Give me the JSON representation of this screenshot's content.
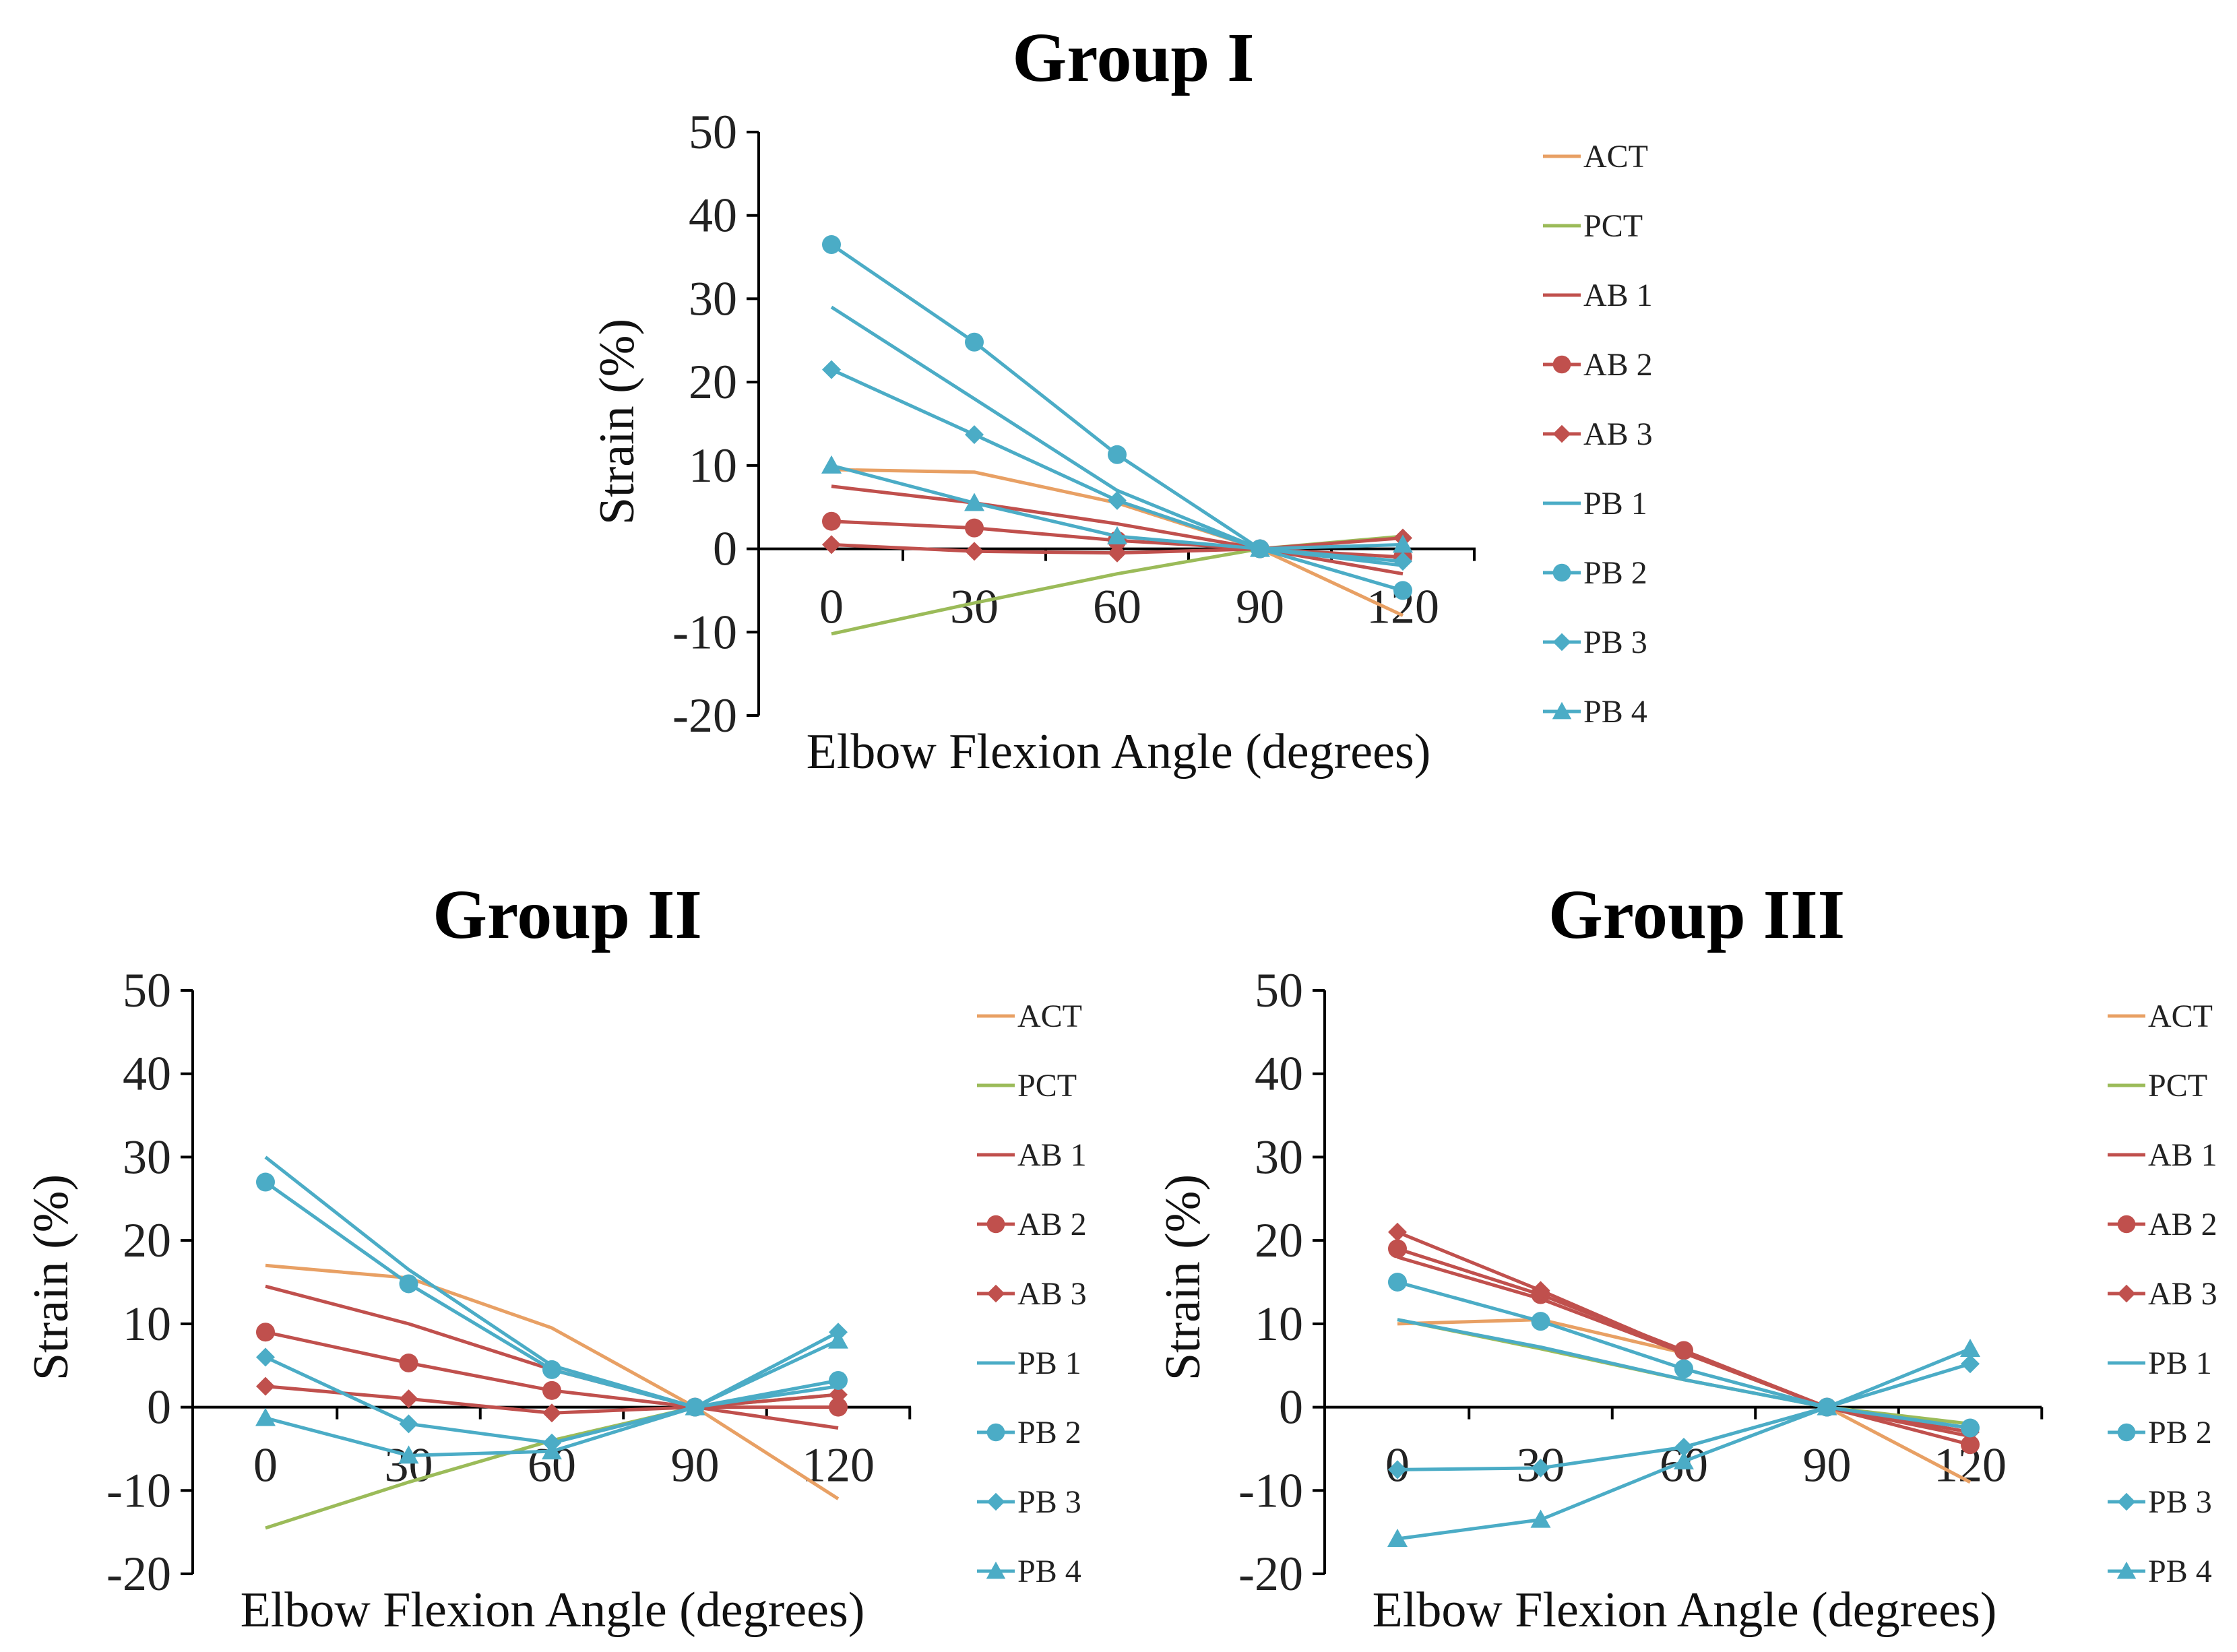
{
  "chart_data": [
    {
      "type": "line",
      "title": "Group I",
      "xlabel": "Elbow Flexion Angle (degrees)",
      "ylabel": "Strain (%)",
      "x": [
        0,
        30,
        60,
        90,
        120
      ],
      "ylim": [
        -20,
        50
      ],
      "yticks": [
        -20,
        -10,
        0,
        10,
        20,
        30,
        40,
        50
      ],
      "legend_position": "right",
      "series": [
        {
          "name": "ACT",
          "marker": "none",
          "color": "#E8A064",
          "values": [
            9.5,
            9.2,
            5.5,
            0,
            -8
          ]
        },
        {
          "name": "PCT",
          "marker": "none",
          "color": "#9BBB59",
          "values": [
            -10.2,
            -6.5,
            -3,
            0,
            1.5
          ]
        },
        {
          "name": "AB 1",
          "marker": "none",
          "color": "#C0504D",
          "values": [
            7.5,
            5.5,
            3,
            0,
            -3
          ]
        },
        {
          "name": "AB 2",
          "marker": "circle",
          "color": "#C0504D",
          "values": [
            3.3,
            2.5,
            1,
            0,
            -1
          ]
        },
        {
          "name": "AB 3",
          "marker": "diamond",
          "color": "#C0504D",
          "values": [
            0.5,
            -0.3,
            -0.5,
            0,
            1.3
          ]
        },
        {
          "name": "PB 1",
          "marker": "none",
          "color": "#4BACC6",
          "values": [
            29,
            18,
            7,
            0,
            -2
          ]
        },
        {
          "name": "PB 2",
          "marker": "circle",
          "color": "#4BACC6",
          "values": [
            36.5,
            24.8,
            11.3,
            0,
            -5
          ]
        },
        {
          "name": "PB 3",
          "marker": "diamond",
          "color": "#4BACC6",
          "values": [
            21.5,
            13.7,
            5.8,
            0,
            -1.5
          ]
        },
        {
          "name": "PB 4",
          "marker": "triangle",
          "color": "#4BACC6",
          "values": [
            10,
            5.5,
            1.5,
            0,
            0.5
          ]
        }
      ]
    },
    {
      "type": "line",
      "title": "Group II",
      "xlabel": "Elbow Flexion Angle (degrees)",
      "ylabel": "Strain (%)",
      "x": [
        0,
        30,
        60,
        90,
        120
      ],
      "ylim": [
        -20,
        50
      ],
      "yticks": [
        -20,
        -10,
        0,
        10,
        20,
        30,
        40,
        50
      ],
      "legend_position": "right",
      "series": [
        {
          "name": "ACT",
          "marker": "none",
          "color": "#E8A064",
          "values": [
            17,
            15.5,
            9.5,
            0,
            -11
          ]
        },
        {
          "name": "PCT",
          "marker": "none",
          "color": "#9BBB59",
          "values": [
            -14.5,
            -9,
            -4,
            0,
            1.5
          ]
        },
        {
          "name": "AB 1",
          "marker": "none",
          "color": "#C0504D",
          "values": [
            14.5,
            10,
            4.5,
            0,
            -2.5
          ]
        },
        {
          "name": "AB 2",
          "marker": "circle",
          "color": "#C0504D",
          "values": [
            9,
            5.3,
            2,
            0,
            0
          ]
        },
        {
          "name": "AB 3",
          "marker": "diamond",
          "color": "#C0504D",
          "values": [
            2.5,
            1,
            -0.7,
            0,
            1.5
          ]
        },
        {
          "name": "PB 1",
          "marker": "none",
          "color": "#4BACC6",
          "values": [
            30,
            16.5,
            5,
            0,
            2.5
          ]
        },
        {
          "name": "PB 2",
          "marker": "circle",
          "color": "#4BACC6",
          "values": [
            27,
            14.8,
            4.5,
            0,
            3.2
          ]
        },
        {
          "name": "PB 3",
          "marker": "diamond",
          "color": "#4BACC6",
          "values": [
            6,
            -2,
            -4.3,
            0,
            9
          ]
        },
        {
          "name": "PB 4",
          "marker": "triangle",
          "color": "#4BACC6",
          "values": [
            -1.3,
            -5.8,
            -5.3,
            0,
            8
          ]
        }
      ]
    },
    {
      "type": "line",
      "title": "Group III",
      "xlabel": "Elbow Flexion Angle (degrees)",
      "ylabel": "Strain (%)",
      "x": [
        0,
        30,
        60,
        90,
        120
      ],
      "ylim": [
        -20,
        50
      ],
      "yticks": [
        -20,
        -10,
        0,
        10,
        20,
        30,
        40,
        50
      ],
      "legend_position": "right",
      "series": [
        {
          "name": "ACT",
          "marker": "none",
          "color": "#E8A064",
          "values": [
            10,
            10.5,
            6.5,
            0,
            -9
          ]
        },
        {
          "name": "PCT",
          "marker": "none",
          "color": "#9BBB59",
          "values": [
            10.5,
            7,
            3.3,
            0,
            -2
          ]
        },
        {
          "name": "AB 1",
          "marker": "none",
          "color": "#C0504D",
          "values": [
            18,
            13,
            6.5,
            0,
            -3.5
          ]
        },
        {
          "name": "AB 2",
          "marker": "circle",
          "color": "#C0504D",
          "values": [
            19,
            13.5,
            6.8,
            0,
            -4.5
          ]
        },
        {
          "name": "AB 3",
          "marker": "diamond",
          "color": "#C0504D",
          "values": [
            21,
            14,
            6.6,
            0,
            -3
          ]
        },
        {
          "name": "PB 1",
          "marker": "none",
          "color": "#4BACC6",
          "values": [
            10.5,
            7.2,
            3.3,
            0,
            -2.5
          ]
        },
        {
          "name": "PB 2",
          "marker": "circle",
          "color": "#4BACC6",
          "values": [
            15,
            10.3,
            4.6,
            0,
            -2.5
          ]
        },
        {
          "name": "PB 3",
          "marker": "diamond",
          "color": "#4BACC6",
          "values": [
            -7.5,
            -7.3,
            -4.8,
            0,
            5.2
          ]
        },
        {
          "name": "PB 4",
          "marker": "triangle",
          "color": "#4BACC6",
          "values": [
            -15.8,
            -13.5,
            -6.5,
            0,
            7
          ]
        }
      ]
    }
  ]
}
